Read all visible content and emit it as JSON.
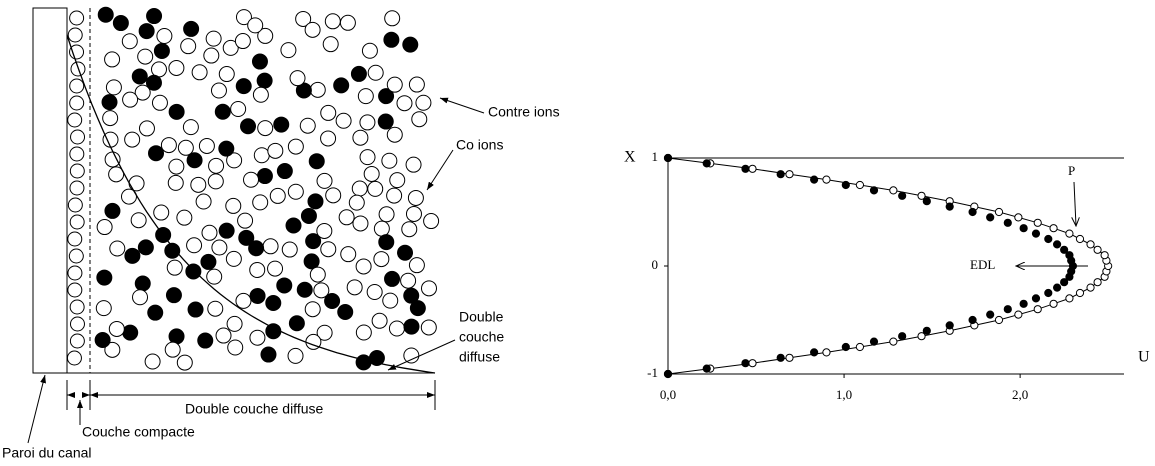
{
  "diagram": {
    "labels": {
      "counter_ions": "Contre ions",
      "co_ions": "Co ions",
      "diffuse_layer": [
        "Double",
        "couche",
        "diffuse"
      ],
      "diffuse_span": "Double couche diffuse",
      "compact_layer": "Couche compacte",
      "wall": "Paroi du canal"
    }
  },
  "chart_data": {
    "type": "scatter",
    "xlabel": "U",
    "ylabel": "X",
    "xlim": [
      0,
      2.59
    ],
    "ylim": [
      -1,
      1
    ],
    "xticks": [
      {
        "value": 0,
        "label": "0,0"
      },
      {
        "value": 1,
        "label": "1,0"
      },
      {
        "value": 2,
        "label": "2,0"
      }
    ],
    "yticks": [
      -1,
      0,
      1
    ],
    "series": [
      {
        "name": "P",
        "color": "#000",
        "marker": "open",
        "x": [
          0,
          0.24,
          0.48,
          0.69,
          0.9,
          1.09,
          1.28,
          1.44,
          1.6,
          1.74,
          1.88,
          1.99,
          2.1,
          2.19,
          2.28,
          2.34,
          2.4,
          2.44,
          2.48,
          2.49,
          2.5,
          2.49,
          2.48,
          2.44,
          2.4,
          2.34,
          2.28,
          2.19,
          2.1,
          1.99,
          1.88,
          1.74,
          1.6,
          1.44,
          1.28,
          1.09,
          0.9,
          0.69,
          0.48,
          0.24,
          0
        ],
        "values": [
          -1,
          -0.95,
          -0.9,
          -0.85,
          -0.8,
          -0.75,
          -0.7,
          -0.65,
          -0.6,
          -0.55,
          -0.5,
          -0.45,
          -0.4,
          -0.35,
          -0.3,
          -0.25,
          -0.2,
          -0.15,
          -0.1,
          -0.05,
          0,
          0.05,
          0.1,
          0.15,
          0.2,
          0.25,
          0.3,
          0.35,
          0.4,
          0.45,
          0.5,
          0.55,
          0.6,
          0.65,
          0.7,
          0.75,
          0.8,
          0.85,
          0.9,
          0.95,
          1
        ]
      },
      {
        "name": "EDL",
        "color": "#000",
        "marker": "filled",
        "x": [
          0,
          0.22,
          0.44,
          0.64,
          0.83,
          1.01,
          1.17,
          1.33,
          1.47,
          1.6,
          1.73,
          1.83,
          1.93,
          2.02,
          2.09,
          2.16,
          2.21,
          2.25,
          2.28,
          2.29,
          2.3,
          2.29,
          2.28,
          2.25,
          2.21,
          2.16,
          2.09,
          2.02,
          1.93,
          1.83,
          1.73,
          1.6,
          1.47,
          1.33,
          1.17,
          1.01,
          0.83,
          0.64,
          0.44,
          0.22,
          0
        ],
        "values": [
          -1,
          -0.95,
          -0.9,
          -0.85,
          -0.8,
          -0.75,
          -0.7,
          -0.65,
          -0.6,
          -0.55,
          -0.5,
          -0.45,
          -0.4,
          -0.35,
          -0.3,
          -0.25,
          -0.2,
          -0.15,
          -0.1,
          -0.05,
          0,
          0.05,
          0.1,
          0.15,
          0.2,
          0.25,
          0.3,
          0.35,
          0.4,
          0.45,
          0.5,
          0.55,
          0.6,
          0.65,
          0.7,
          0.75,
          0.8,
          0.85,
          0.9,
          0.95,
          1
        ]
      }
    ]
  }
}
